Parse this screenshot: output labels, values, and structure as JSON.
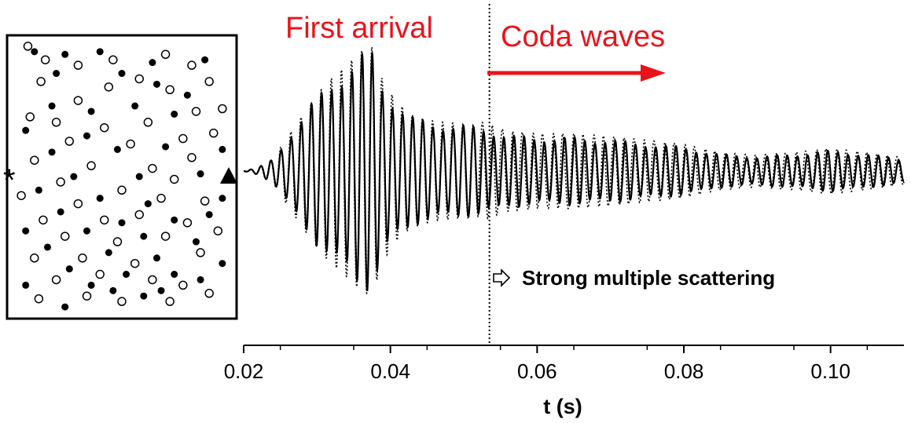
{
  "chart_data": {
    "type": "line",
    "title": "",
    "xlabel": "t (s)",
    "ylabel": "",
    "xlim": [
      0.02,
      0.11
    ],
    "xticks": [
      0.02,
      0.04,
      0.06,
      0.08,
      0.1
    ],
    "xtick_labels": [
      "0.02",
      "0.04",
      "0.06",
      "0.08",
      "0.10"
    ],
    "divider_time": 0.0535,
    "annotations": {
      "first_arrival": "First arrival",
      "coda": "Coda waves",
      "scattering": "Strong multiple scattering"
    },
    "series": [
      {
        "name": "solid",
        "style": "solid",
        "description": "waveform trace 1"
      },
      {
        "name": "dotted",
        "style": "dotted",
        "description": "waveform trace 2"
      }
    ],
    "waveform": {
      "onset": 0.022,
      "peak_time": 0.0365,
      "period": 0.00138,
      "envelope": [
        [
          0.02,
          0.0
        ],
        [
          0.022,
          0.03
        ],
        [
          0.024,
          0.1
        ],
        [
          0.026,
          0.28
        ],
        [
          0.028,
          0.45
        ],
        [
          0.03,
          0.62
        ],
        [
          0.032,
          0.75
        ],
        [
          0.034,
          0.85
        ],
        [
          0.036,
          0.97
        ],
        [
          0.0375,
          1.0
        ],
        [
          0.039,
          0.72
        ],
        [
          0.041,
          0.55
        ],
        [
          0.043,
          0.45
        ],
        [
          0.046,
          0.4
        ],
        [
          0.05,
          0.38
        ],
        [
          0.053,
          0.36
        ],
        [
          0.056,
          0.3
        ],
        [
          0.06,
          0.28
        ],
        [
          0.065,
          0.28
        ],
        [
          0.07,
          0.26
        ],
        [
          0.075,
          0.23
        ],
        [
          0.08,
          0.2
        ],
        [
          0.085,
          0.14
        ],
        [
          0.09,
          0.12
        ],
        [
          0.095,
          0.14
        ],
        [
          0.1,
          0.17
        ],
        [
          0.105,
          0.14
        ],
        [
          0.11,
          0.1
        ]
      ]
    },
    "scatter_panel": {
      "source_marker": "*",
      "receiver_marker": "triangle",
      "open_circles": [
        [
          0.07,
          0.02
        ],
        [
          0.15,
          0.07
        ],
        [
          0.3,
          0.09
        ],
        [
          0.46,
          0.07
        ],
        [
          0.7,
          0.05
        ],
        [
          0.82,
          0.09
        ],
        [
          0.13,
          0.15
        ],
        [
          0.44,
          0.17
        ],
        [
          0.58,
          0.14
        ],
        [
          0.72,
          0.18
        ],
        [
          0.9,
          0.15
        ],
        [
          0.3,
          0.22
        ],
        [
          0.2,
          0.3
        ],
        [
          0.42,
          0.32
        ],
        [
          0.62,
          0.3
        ],
        [
          0.84,
          0.26
        ],
        [
          0.96,
          0.25
        ],
        [
          0.08,
          0.28
        ],
        [
          0.26,
          0.37
        ],
        [
          0.54,
          0.38
        ],
        [
          0.78,
          0.36
        ],
        [
          0.92,
          0.34
        ],
        [
          0.1,
          0.44
        ],
        [
          0.36,
          0.46
        ],
        [
          0.64,
          0.47
        ],
        [
          0.82,
          0.43
        ],
        [
          0.22,
          0.52
        ],
        [
          0.5,
          0.55
        ],
        [
          0.74,
          0.51
        ],
        [
          0.04,
          0.57
        ],
        [
          0.3,
          0.6
        ],
        [
          0.68,
          0.58
        ],
        [
          0.88,
          0.59
        ],
        [
          0.14,
          0.66
        ],
        [
          0.42,
          0.66
        ],
        [
          0.58,
          0.64
        ],
        [
          0.8,
          0.67
        ],
        [
          0.24,
          0.72
        ],
        [
          0.48,
          0.74
        ],
        [
          0.7,
          0.72
        ],
        [
          0.94,
          0.7
        ],
        [
          0.1,
          0.8
        ],
        [
          0.32,
          0.8
        ],
        [
          0.56,
          0.82
        ],
        [
          0.86,
          0.78
        ],
        [
          0.2,
          0.88
        ],
        [
          0.4,
          0.86
        ],
        [
          0.64,
          0.88
        ],
        [
          0.78,
          0.9
        ],
        [
          0.12,
          0.95
        ],
        [
          0.5,
          0.96
        ],
        [
          0.72,
          0.96
        ],
        [
          0.9,
          0.93
        ],
        [
          0.34,
          0.94
        ]
      ],
      "filled_circles": [
        [
          0.1,
          0.04
        ],
        [
          0.24,
          0.05
        ],
        [
          0.4,
          0.04
        ],
        [
          0.64,
          0.08
        ],
        [
          0.88,
          0.07
        ],
        [
          0.2,
          0.12
        ],
        [
          0.5,
          0.12
        ],
        [
          0.66,
          0.16
        ],
        [
          0.8,
          0.2
        ],
        [
          0.18,
          0.24
        ],
        [
          0.36,
          0.26
        ],
        [
          0.56,
          0.24
        ],
        [
          0.74,
          0.27
        ],
        [
          0.06,
          0.33
        ],
        [
          0.34,
          0.35
        ],
        [
          0.48,
          0.4
        ],
        [
          0.7,
          0.39
        ],
        [
          0.96,
          0.4
        ],
        [
          0.18,
          0.41
        ],
        [
          0.28,
          0.5
        ],
        [
          0.58,
          0.5
        ],
        [
          0.86,
          0.49
        ],
        [
          0.12,
          0.55
        ],
        [
          0.4,
          0.58
        ],
        [
          0.62,
          0.6
        ],
        [
          0.96,
          0.58
        ],
        [
          0.22,
          0.63
        ],
        [
          0.5,
          0.67
        ],
        [
          0.74,
          0.66
        ],
        [
          0.9,
          0.64
        ],
        [
          0.06,
          0.7
        ],
        [
          0.34,
          0.7
        ],
        [
          0.6,
          0.72
        ],
        [
          0.84,
          0.74
        ],
        [
          0.16,
          0.76
        ],
        [
          0.44,
          0.78
        ],
        [
          0.66,
          0.8
        ],
        [
          0.96,
          0.82
        ],
        [
          0.26,
          0.84
        ],
        [
          0.52,
          0.86
        ],
        [
          0.74,
          0.86
        ],
        [
          0.06,
          0.9
        ],
        [
          0.36,
          0.9
        ],
        [
          0.6,
          0.94
        ],
        [
          0.86,
          0.88
        ],
        [
          0.24,
          0.98
        ],
        [
          0.46,
          0.92
        ],
        [
          0.68,
          0.92
        ]
      ]
    }
  }
}
